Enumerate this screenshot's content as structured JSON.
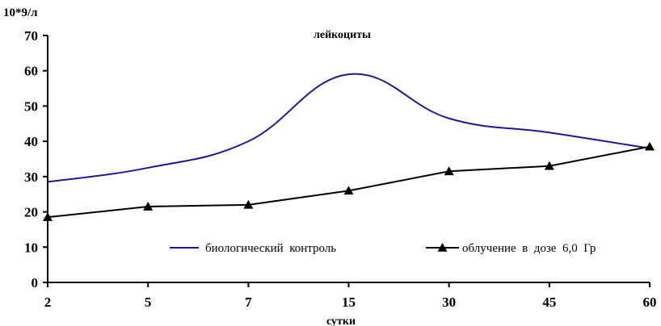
{
  "chart_data": {
    "type": "line",
    "title": "лейкоциты",
    "ylabel": "10*9/л",
    "xlabel": "сутки",
    "categories": [
      "2",
      "5",
      "7",
      "15",
      "30",
      "45",
      "60"
    ],
    "ylim": [
      0,
      70
    ],
    "yticks": [
      "0",
      "10",
      "20",
      "30",
      "40",
      "50",
      "60",
      "70"
    ],
    "grid": false,
    "legend_position": "bottom inside",
    "series": [
      {
        "name": "биологический  контроль",
        "values": [
          28.5,
          32.5,
          40,
          59,
          46.5,
          42.5,
          38
        ],
        "color": "#1f1a8c",
        "marker": "none",
        "smooth": true
      },
      {
        "name": "облучение  в  дозе  6,0  Гр",
        "values": [
          18.5,
          21.5,
          22,
          26,
          31.5,
          33,
          38.5
        ],
        "color": "#000000",
        "marker": "triangle",
        "smooth": false
      }
    ]
  }
}
